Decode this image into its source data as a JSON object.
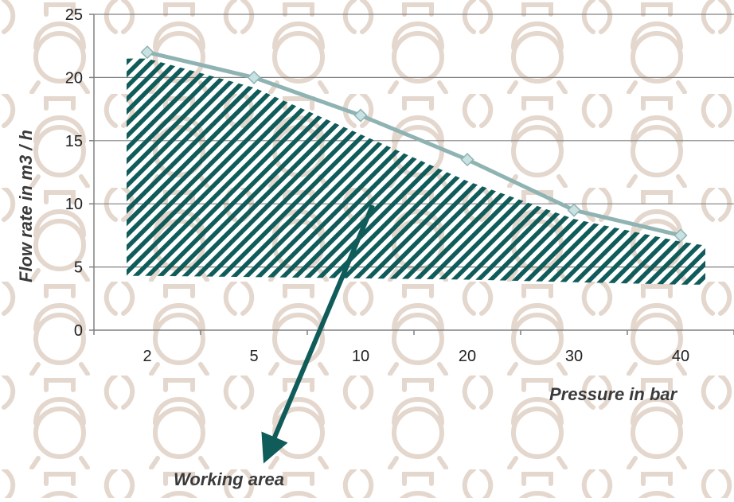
{
  "chart_data": {
    "type": "line",
    "categories": [
      "2",
      "5",
      "10",
      "20",
      "30",
      "40"
    ],
    "series": [
      {
        "values": [
          22,
          20,
          17,
          13.5,
          9.5,
          7.5
        ]
      }
    ],
    "working_area": {
      "upper": [
        21.5,
        19.2,
        15.5,
        11.8,
        8.8,
        7
      ],
      "lower": [
        4.3,
        4.2,
        4.1,
        4.0,
        3.8,
        3.6
      ]
    },
    "xlabel": "Pressure in bar",
    "ylabel": "Flow rate in m3 / h",
    "annotation": "Working area",
    "ylim": [
      0,
      25
    ],
    "yticks": [
      0,
      5,
      10,
      15,
      20,
      25
    ],
    "grid": true,
    "legend": "none",
    "colors": {
      "line": "#8fb3b3",
      "marker_fill": "#c8e2e2",
      "marker_stroke": "#8fb3b3",
      "hatch": "#0f5c5a",
      "arrow": "#0f5c5a",
      "grid": "#808080",
      "watermark": "#e4d7cd"
    }
  }
}
